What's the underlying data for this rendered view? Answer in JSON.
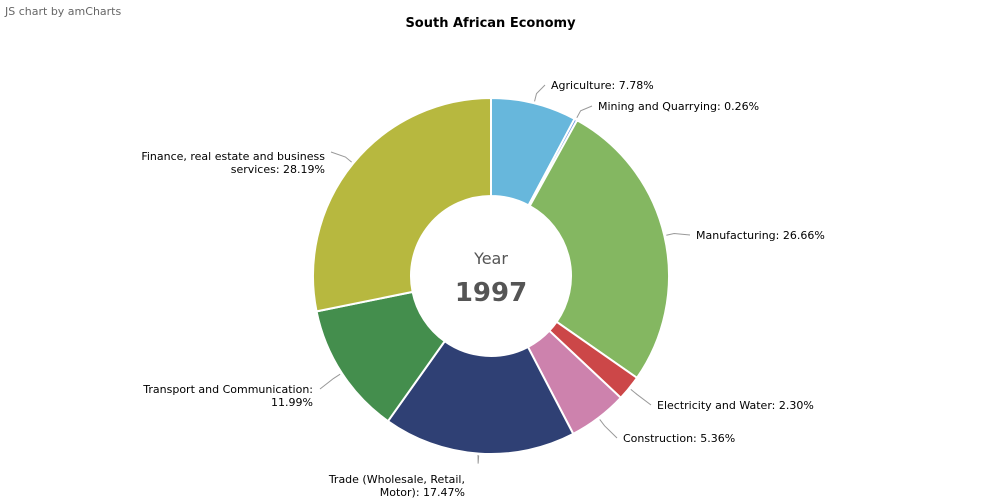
{
  "credit": "JS chart by amCharts",
  "chart_data": {
    "type": "pie",
    "variant": "donut",
    "title": "South African Economy",
    "center_label": "Year",
    "center_value": "1997",
    "legend": "none",
    "slices": [
      {
        "label": "Agriculture: 7.78%",
        "value": 7.78,
        "color": "#67b7dc",
        "text_anchor": "start",
        "lines": [
          "Agriculture: 7.78%"
        ]
      },
      {
        "label": "Mining and Quarrying: 0.26%",
        "value": 0.26,
        "color": "#6794dc",
        "text_anchor": "start",
        "lines": [
          "Mining and Quarrying: 0.26%"
        ]
      },
      {
        "label": "Manufacturing: 26.66%",
        "value": 26.66,
        "color": "#84b761",
        "text_anchor": "start",
        "lines": [
          "Manufacturing: 26.66%"
        ]
      },
      {
        "label": "Electricity and Water: 2.30%",
        "value": 2.3,
        "color": "#cc4748",
        "text_anchor": "start",
        "lines": [
          "Electricity and Water: 2.30%"
        ]
      },
      {
        "label": "Construction: 5.36%",
        "value": 5.36,
        "color": "#cd82ad",
        "text_anchor": "start",
        "lines": [
          "Construction: 5.36%"
        ]
      },
      {
        "label": "Trade (Wholesale, Retail, Motor): 17.47%",
        "value": 17.47,
        "color": "#2f4074",
        "text_anchor": "end",
        "lines": [
          "Trade (Wholesale, Retail,",
          "Motor): 17.47%"
        ]
      },
      {
        "label": "Transport and Communication: 11.99%",
        "value": 11.99,
        "color": "#448e4d",
        "text_anchor": "end",
        "lines": [
          "Transport and Communication:",
          "11.99%"
        ]
      },
      {
        "label": "Finance, real estate and business services: 28.19%",
        "value": 28.19,
        "color": "#b7b83f",
        "text_anchor": "end",
        "lines": [
          "Finance, real estate and business",
          "services: 28.19%"
        ]
      }
    ]
  }
}
